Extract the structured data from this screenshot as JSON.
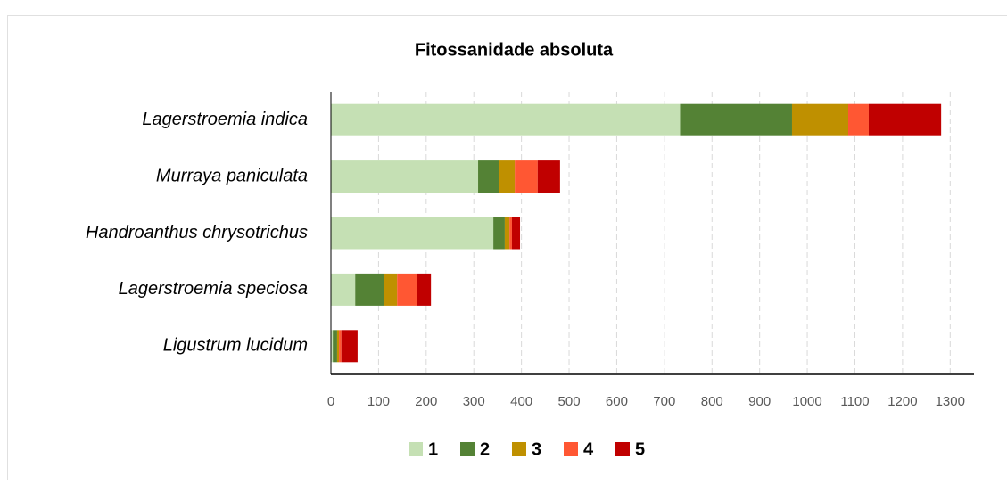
{
  "chart_data": {
    "type": "stacked-bar-horizontal",
    "title": "Fitossanidade absoluta",
    "categories": [
      "Lagerstroemia indica",
      "Murraya paniculata",
      "Handroanthus chrysotrichus",
      "Lagerstroemia speciosa",
      "Ligustrum lucidum"
    ],
    "series": [
      {
        "name": "1",
        "color": "#c5e0b4",
        "values": [
          733,
          309,
          341,
          51,
          4
        ]
      },
      {
        "name": "2",
        "color": "#548235",
        "values": [
          235,
          43,
          24,
          61,
          9
        ]
      },
      {
        "name": "3",
        "color": "#bf9000",
        "values": [
          118,
          34,
          10,
          27,
          4
        ]
      },
      {
        "name": "4",
        "color": "#ff5733",
        "values": [
          43,
          48,
          5,
          41,
          5
        ]
      },
      {
        "name": "5",
        "color": "#c00000",
        "values": [
          152,
          47,
          17,
          30,
          34
        ]
      }
    ],
    "xlim": [
      0,
      1350
    ],
    "xticks": [
      0,
      100,
      200,
      300,
      400,
      500,
      600,
      700,
      800,
      900,
      1000,
      1100,
      1200,
      1300
    ],
    "grid": true,
    "legend": "bottom"
  }
}
